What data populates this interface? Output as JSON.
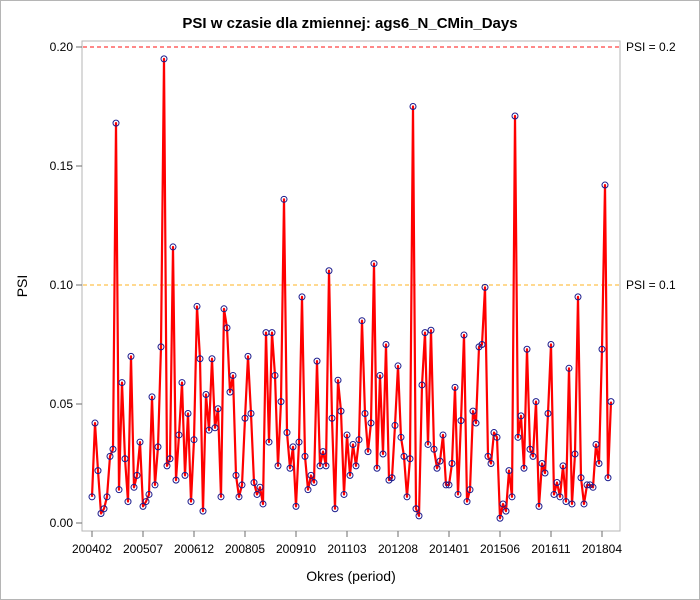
{
  "chart_data": {
    "type": "line",
    "title": "PSI w czasie dla zmiennej: ags6_N_CMin_Days",
    "xlabel": "Okres (period)",
    "ylabel": "PSI",
    "ylim": [
      0.0,
      0.2
    ],
    "yticks": [
      {
        "value": 0.0,
        "label": "0.00"
      },
      {
        "value": 0.05,
        "label": "0.05"
      },
      {
        "value": 0.1,
        "label": "0.10"
      },
      {
        "value": 0.15,
        "label": "0.15"
      },
      {
        "value": 0.2,
        "label": "0.20"
      }
    ],
    "xticks": [
      {
        "index": 0,
        "label": "200402"
      },
      {
        "index": 17,
        "label": "200507"
      },
      {
        "index": 34,
        "label": "200612"
      },
      {
        "index": 51,
        "label": "200805"
      },
      {
        "index": 68,
        "label": "200910"
      },
      {
        "index": 85,
        "label": "201103"
      },
      {
        "index": 102,
        "label": "201208"
      },
      {
        "index": 119,
        "label": "201401"
      },
      {
        "index": 136,
        "label": "201506"
      },
      {
        "index": 153,
        "label": "201611"
      },
      {
        "index": 170,
        "label": "201804"
      }
    ],
    "reference_lines": [
      {
        "value": 0.2,
        "label": "PSI = 0.2",
        "color": "#ff4040",
        "style": "dashed"
      },
      {
        "value": 0.1,
        "label": "PSI = 0.1",
        "color": "#ffc24d",
        "style": "dashed"
      }
    ],
    "series": [
      {
        "line_color": "#ff0000",
        "marker_color": "#1a1a8c",
        "values": [
          0.011,
          0.042,
          0.022,
          0.004,
          0.006,
          0.011,
          0.028,
          0.031,
          0.168,
          0.014,
          0.059,
          0.027,
          0.009,
          0.07,
          0.015,
          0.02,
          0.034,
          0.007,
          0.009,
          0.012,
          0.053,
          0.016,
          0.032,
          0.074,
          0.195,
          0.024,
          0.027,
          0.116,
          0.018,
          0.037,
          0.059,
          0.02,
          0.046,
          0.009,
          0.035,
          0.091,
          0.069,
          0.005,
          0.054,
          0.039,
          0.069,
          0.04,
          0.048,
          0.011,
          0.09,
          0.082,
          0.055,
          0.062,
          0.02,
          0.011,
          0.016,
          0.044,
          0.07,
          0.046,
          0.017,
          0.012,
          0.015,
          0.008,
          0.08,
          0.034,
          0.08,
          0.062,
          0.024,
          0.051,
          0.136,
          0.038,
          0.023,
          0.032,
          0.007,
          0.034,
          0.095,
          0.028,
          0.014,
          0.02,
          0.017,
          0.068,
          0.024,
          0.03,
          0.024,
          0.106,
          0.044,
          0.006,
          0.06,
          0.047,
          0.012,
          0.037,
          0.02,
          0.033,
          0.024,
          0.035,
          0.085,
          0.046,
          0.03,
          0.042,
          0.109,
          0.023,
          0.062,
          0.029,
          0.075,
          0.018,
          0.019,
          0.041,
          0.066,
          0.036,
          0.028,
          0.011,
          0.027,
          0.175,
          0.006,
          0.003,
          0.058,
          0.08,
          0.033,
          0.081,
          0.031,
          0.023,
          0.026,
          0.037,
          0.016,
          0.016,
          0.025,
          0.057,
          0.012,
          0.043,
          0.079,
          0.009,
          0.014,
          0.047,
          0.042,
          0.074,
          0.075,
          0.099,
          0.028,
          0.025,
          0.038,
          0.036,
          0.002,
          0.008,
          0.005,
          0.022,
          0.011,
          0.171,
          0.036,
          0.045,
          0.023,
          0.073,
          0.031,
          0.028,
          0.051,
          0.007,
          0.025,
          0.021,
          0.046,
          0.075,
          0.012,
          0.017,
          0.011,
          0.024,
          0.009,
          0.065,
          0.008,
          0.029,
          0.095,
          0.019,
          0.008,
          0.016,
          0.016,
          0.015,
          0.033,
          0.025,
          0.073,
          0.142,
          0.019,
          0.051
        ]
      }
    ]
  }
}
